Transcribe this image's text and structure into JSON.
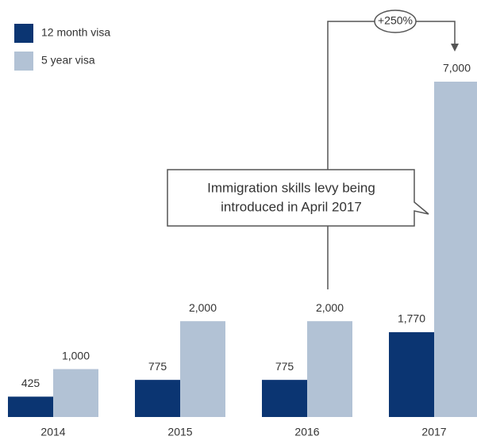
{
  "chart_data": {
    "type": "bar",
    "categories": [
      "2014",
      "2015",
      "2016",
      "2017"
    ],
    "series": [
      {
        "name": "12 month visa",
        "color": "#0b3572",
        "values": [
          425,
          775,
          775,
          1770
        ],
        "value_labels": [
          "425",
          "775",
          "775",
          "1,770"
        ]
      },
      {
        "name": "5 year visa",
        "color": "#b2c2d5",
        "values": [
          1000,
          2000,
          2000,
          7000
        ],
        "value_labels": [
          "1,000",
          "2,000",
          "2,000",
          "7,000"
        ]
      }
    ],
    "legend": "top-left",
    "annotations": {
      "change": "+250%",
      "callout": [
        "Immigration skills levy being",
        "introduced in April 2017"
      ]
    }
  }
}
